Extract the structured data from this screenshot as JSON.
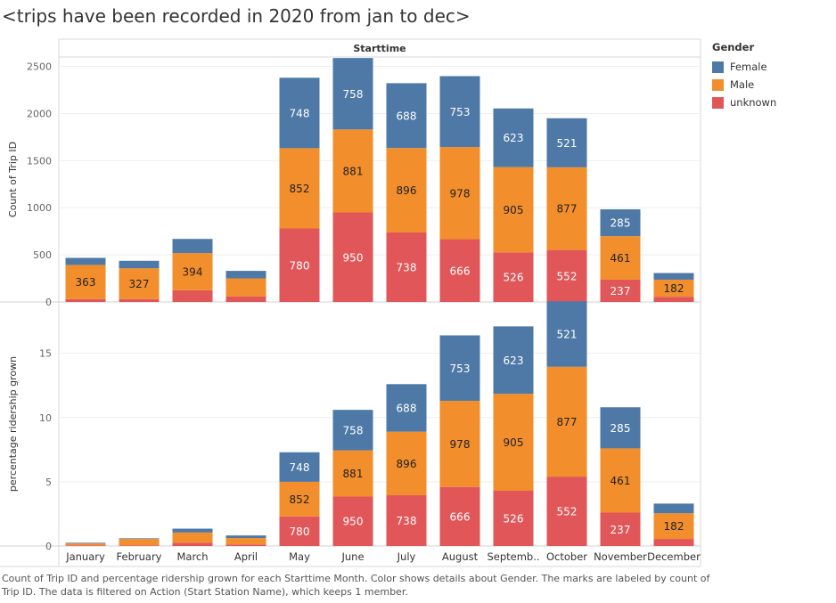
{
  "title": "<trips have been recorded in 2020 from jan to dec>",
  "caption": "Count of Trip ID and percentage  ridership grown for each Starttime Month.  Color shows details about Gender.  The marks are labeled by count of Trip ID. The data is filtered on Action (Start Station Name), which keeps 1 member.",
  "colors": {
    "Female": "#4e79a7",
    "Male": "#f28e2b",
    "unknown": "#e15759"
  },
  "legend": {
    "title": "Gender",
    "items": [
      {
        "label": "Female",
        "color": "#4e79a7"
      },
      {
        "label": "Male",
        "color": "#f28e2b"
      },
      {
        "label": "unknown",
        "color": "#e15759"
      }
    ]
  },
  "chart_data": [
    {
      "type": "bar",
      "stacked": true,
      "header": "Starttime",
      "ylabel": "Count of Trip ID",
      "ylim": [
        0,
        2600
      ],
      "yticks": [
        0,
        500,
        1000,
        1500,
        2000,
        2500
      ],
      "categories": [
        "January",
        "February",
        "March",
        "April",
        "May",
        "June",
        "July",
        "August",
        "Septemb..",
        "October",
        "November",
        "December"
      ],
      "series": [
        {
          "name": "unknown",
          "values": [
            30,
            30,
            125,
            60,
            780,
            950,
            738,
            666,
            526,
            552,
            237,
            55
          ],
          "labels": [
            null,
            null,
            null,
            null,
            "780",
            "950",
            "738",
            "666",
            "526",
            "552",
            "237",
            null
          ]
        },
        {
          "name": "Male",
          "values": [
            363,
            327,
            394,
            190,
            852,
            881,
            896,
            978,
            905,
            877,
            461,
            182
          ],
          "labels": [
            "363",
            "327",
            "394",
            null,
            "852",
            "881",
            "896",
            "978",
            "905",
            "877",
            "461",
            "182"
          ]
        },
        {
          "name": "Female",
          "values": [
            75,
            80,
            150,
            80,
            748,
            758,
            688,
            753,
            623,
            521,
            285,
            70
          ],
          "labels": [
            null,
            null,
            null,
            null,
            "748",
            "758",
            "688",
            "753",
            "623",
            "521",
            "285",
            null
          ]
        }
      ]
    },
    {
      "type": "bar",
      "stacked": true,
      "ylabel": "percentage ridership grown",
      "ylim": [
        0,
        19
      ],
      "yticks": [
        0,
        5,
        10,
        15
      ],
      "categories": [
        "January",
        "February",
        "March",
        "April",
        "May",
        "June",
        "July",
        "August",
        "Septemb..",
        "October",
        "November",
        "December"
      ],
      "series": [
        {
          "name": "unknown",
          "values": [
            0.05,
            0.05,
            0.25,
            0.12,
            2.3,
            3.85,
            3.95,
            4.6,
            4.3,
            5.4,
            2.6,
            0.55
          ],
          "labels": [
            null,
            null,
            null,
            null,
            "780",
            "950",
            "738",
            "666",
            "526",
            "552",
            "237",
            null
          ]
        },
        {
          "name": "Male",
          "values": [
            0.15,
            0.5,
            0.8,
            0.5,
            2.7,
            3.6,
            4.95,
            6.7,
            7.55,
            8.55,
            5.0,
            2.0
          ],
          "labels": [
            null,
            null,
            null,
            null,
            "852",
            "881",
            "896",
            "978",
            "905",
            "877",
            "461",
            "182"
          ]
        },
        {
          "name": "Female",
          "values": [
            0.05,
            0.05,
            0.3,
            0.2,
            2.3,
            3.15,
            3.7,
            5.1,
            5.25,
            5.1,
            3.2,
            0.75
          ],
          "labels": [
            null,
            null,
            null,
            null,
            "748",
            "758",
            "688",
            "753",
            "623",
            "521",
            "285",
            null
          ]
        }
      ]
    }
  ]
}
